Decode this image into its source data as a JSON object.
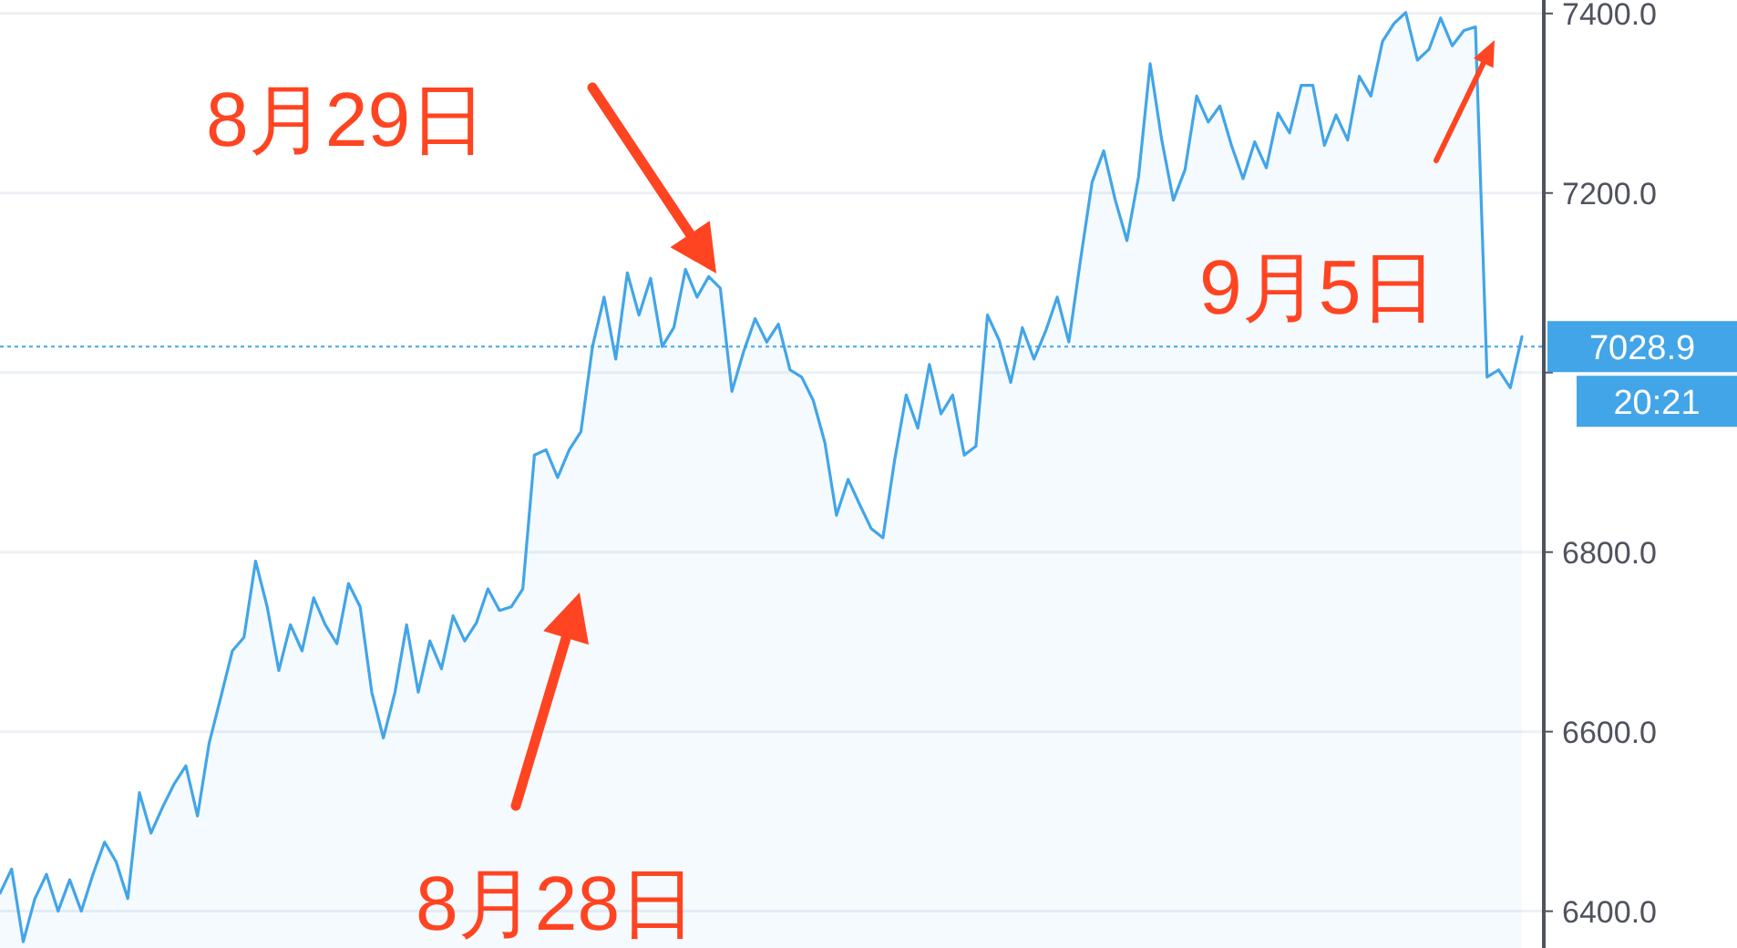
{
  "chart_data": {
    "type": "area",
    "categories": [
      null,
      null,
      null,
      null,
      null,
      null,
      null,
      null,
      null,
      null,
      null,
      null,
      null,
      null,
      null,
      null,
      null,
      null,
      null,
      null,
      null,
      null,
      null,
      null,
      null,
      null,
      null,
      null,
      null,
      null,
      null,
      null,
      null,
      null,
      null,
      null,
      null,
      null,
      null,
      null,
      null,
      null,
      null,
      null,
      null,
      null,
      null,
      null,
      null,
      null,
      null,
      null,
      null,
      null,
      null,
      null,
      null,
      null,
      null,
      null,
      null,
      null,
      null,
      null,
      null,
      null,
      null,
      null,
      null,
      null,
      null,
      null,
      null,
      null,
      null,
      null,
      null,
      null,
      null,
      null,
      null,
      null,
      null,
      null,
      null,
      null,
      null,
      null,
      null,
      null,
      null,
      null,
      null,
      null,
      null,
      null,
      null,
      null,
      null,
      null,
      null,
      null,
      null,
      null,
      null,
      null,
      null,
      null,
      null,
      null,
      null,
      null,
      null,
      null,
      null,
      null,
      null,
      null,
      null,
      null,
      null,
      null,
      null,
      null,
      null,
      null,
      null,
      null,
      null,
      null,
      null,
      null
    ],
    "series": [
      {
        "color": "#42a5e8",
        "values": [
          6420,
          6447,
          6366,
          6414,
          6441,
          6400,
          6435,
          6400,
          6441,
          6477,
          6455,
          6414,
          6532,
          6487,
          6516,
          6542,
          6562,
          6506,
          6587,
          6638,
          6690,
          6705,
          6790,
          6739,
          6668,
          6719,
          6690,
          6749,
          6719,
          6698,
          6765,
          6739,
          6644,
          6593,
          6644,
          6719,
          6644,
          6701,
          6670,
          6729,
          6701,
          6721,
          6759,
          6735,
          6739,
          6759,
          6908,
          6914,
          6883,
          6914,
          6934,
          7029,
          7084,
          7015,
          7111,
          7064,
          7105,
          7029,
          7050,
          7115,
          7084,
          7107,
          7094,
          6979,
          7023,
          7060,
          7034,
          7054,
          7003,
          6995,
          6969,
          6922,
          6841,
          6881,
          6853,
          6826,
          6816,
          6902,
          6975,
          6938,
          7009,
          6954,
          6975,
          6908,
          6918,
          7064,
          7036,
          6989,
          7050,
          7015,
          7046,
          7084,
          7034,
          7125,
          7212,
          7247,
          7192,
          7147,
          7218,
          7344,
          7259,
          7192,
          7226,
          7308,
          7279,
          7297,
          7253,
          7216,
          7257,
          7228,
          7289,
          7267,
          7320,
          7320,
          7253,
          7287,
          7259,
          7330,
          7308,
          7369,
          7389,
          7401,
          7348,
          7360,
          7395,
          7364,
          7381,
          7385,
          6995,
          7003,
          6983,
          7040
        ]
      }
    ],
    "ylim": [
      6359,
      7415
    ],
    "yticks": [
      {
        "value": 6400,
        "label": "6400.0"
      },
      {
        "value": 6600,
        "label": "6600.0"
      },
      {
        "value": 6800,
        "label": "6800.0"
      },
      {
        "value": 7000,
        "label": null
      },
      {
        "value": 7200,
        "label": "7200.0"
      },
      {
        "value": 7400,
        "label": "7400.0"
      }
    ],
    "grid": "y",
    "tick_labels": "y",
    "ref_lines": [
      {
        "axis": "y",
        "value": 7028.9,
        "label": "7028.9",
        "color": "#42a5e8",
        "line_style": "dotted"
      }
    ],
    "annotations": [
      "8月29日",
      "8月28日",
      "9月5日",
      "20:21"
    ]
  }
}
